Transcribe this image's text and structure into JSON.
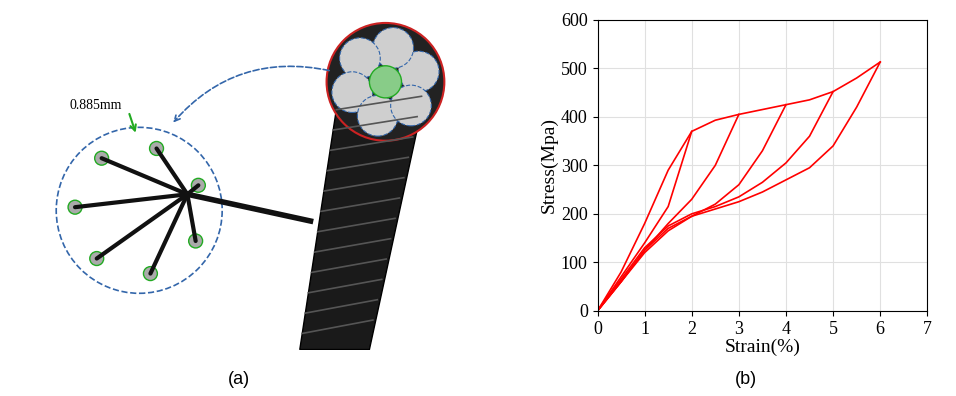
{
  "panel_a": {
    "caption": "(a)",
    "annotation": "0.885mm"
  },
  "chart_data": {
    "type": "line",
    "caption": "(b)",
    "x_label": "Strain(%)",
    "y_label": "Stress(Mpa)",
    "xlim": [
      0,
      7
    ],
    "ylim": [
      0,
      600
    ],
    "xticks": [
      0,
      1,
      2,
      3,
      4,
      5,
      6,
      7
    ],
    "yticks": [
      0,
      100,
      200,
      300,
      400,
      500,
      600
    ],
    "grid": true,
    "series": [
      {
        "color": "#ff0000",
        "x": [
          0,
          0.5,
          1,
          1.5,
          2,
          2.5,
          3,
          3.5,
          4,
          4.5,
          5,
          5.5,
          6
        ],
        "values": [
          0,
          80,
          180,
          290,
          370,
          393,
          405,
          415,
          425,
          435,
          452,
          480,
          513
        ]
      },
      {
        "color": "#ff0000",
        "x": [
          2,
          1.5,
          1,
          0.5,
          0
        ],
        "values": [
          370,
          215,
          140,
          70,
          0
        ]
      },
      {
        "color": "#ff0000",
        "x": [
          3,
          2.5,
          2,
          1.5,
          1,
          0.5,
          0
        ],
        "values": [
          405,
          300,
          230,
          180,
          125,
          60,
          0
        ]
      },
      {
        "color": "#ff0000",
        "x": [
          4,
          3.5,
          3,
          2.5,
          2,
          1.5,
          1,
          0.5,
          0
        ],
        "values": [
          425,
          330,
          260,
          220,
          195,
          165,
          120,
          60,
          0
        ]
      },
      {
        "color": "#ff0000",
        "x": [
          5,
          4.5,
          4,
          3.5,
          3,
          2.5,
          2,
          1.5,
          1,
          0.5,
          0
        ],
        "values": [
          452,
          360,
          305,
          265,
          235,
          215,
          200,
          175,
          130,
          65,
          0
        ]
      },
      {
        "color": "#ff0000",
        "x": [
          6,
          5.5,
          5,
          4.5,
          4,
          3.5,
          3,
          2.5,
          2,
          1.5,
          1,
          0.5,
          0
        ],
        "values": [
          513,
          420,
          340,
          295,
          270,
          245,
          225,
          210,
          195,
          170,
          125,
          60,
          0
        ]
      }
    ]
  }
}
